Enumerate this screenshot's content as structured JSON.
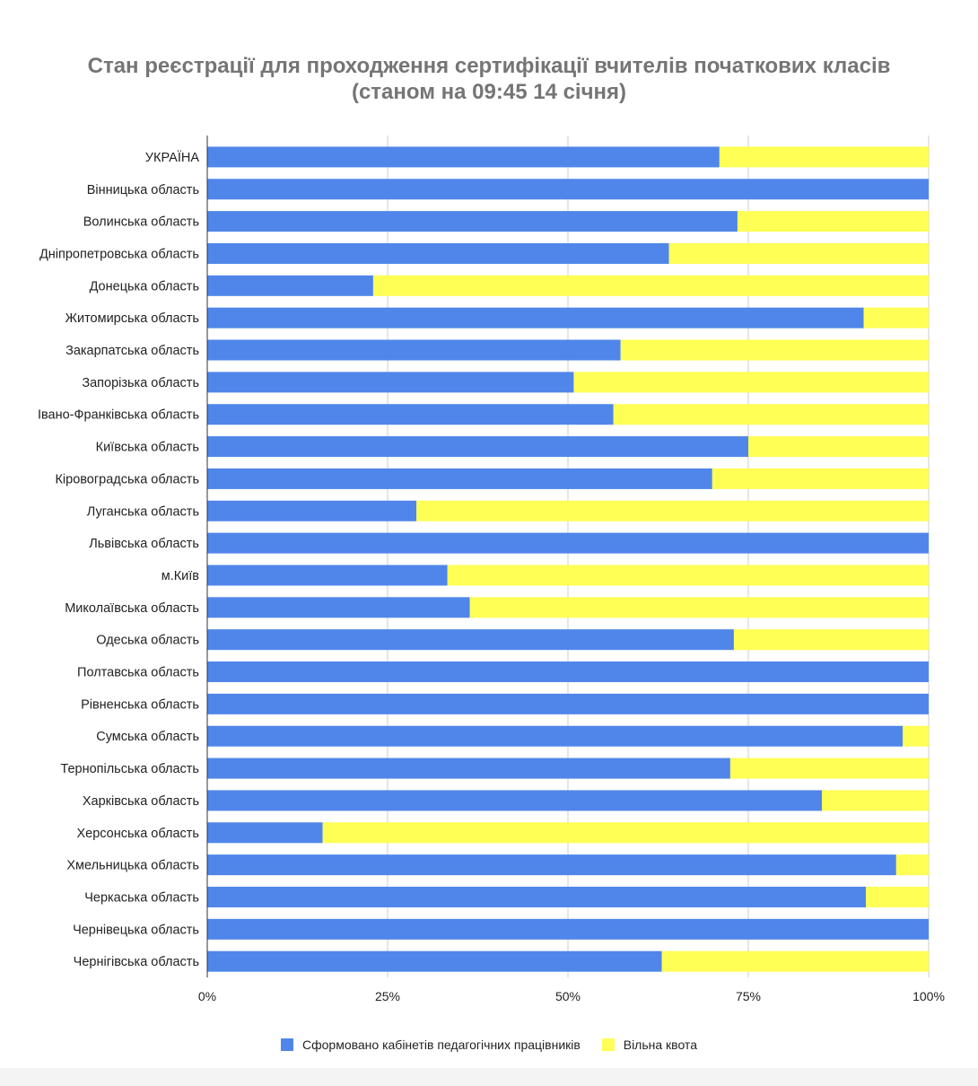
{
  "chart_data": {
    "type": "bar",
    "orientation": "horizontal",
    "stacked": "percent",
    "title": "Стан реєстрації для проходження сертифікації вчителів початкових класів",
    "subtitle": "(станом на 09:45 14 січня)",
    "categories": [
      "УКРАЇНА",
      "Вінницька область",
      "Волинська область",
      "Дніпропетровська область",
      "Донецька область",
      "Житомирська область",
      "Закарпатська область",
      "Запорізька область",
      "Івано-Франківська область",
      "Київська область",
      "Кіровоградська область",
      "Луганська область",
      "Львівська область",
      "м.Київ",
      "Миколаївська область",
      "Одеська область",
      "Полтавська область",
      "Рівненська область",
      "Сумська область",
      "Тернопільська область",
      "Харківська область",
      "Херсонська область",
      "Хмельницька область",
      "Черкаська область",
      "Чернівецька область",
      "Чернігівська область"
    ],
    "series": [
      {
        "name": "Сформовано кабінетів педагогічних працівників",
        "color": "#5086EA",
        "values": [
          71,
          100,
          73.5,
          64,
          23,
          91,
          57.3,
          50.8,
          56.3,
          75,
          70,
          29,
          100,
          33.3,
          36.4,
          73,
          100,
          100,
          96.4,
          72.5,
          85.2,
          16,
          95.5,
          91.3,
          100,
          63
        ]
      },
      {
        "name": "Вільна квота",
        "color": "#FFFF55",
        "values": [
          29,
          0,
          26.5,
          36,
          77,
          9,
          42.7,
          49.2,
          43.7,
          25,
          30,
          71,
          0,
          66.7,
          63.6,
          27,
          0,
          0,
          3.6,
          27.5,
          14.8,
          84,
          4.5,
          8.7,
          0,
          37
        ]
      }
    ],
    "xlim": [
      0,
      100
    ],
    "x_ticks": [
      "0%",
      "25%",
      "50%",
      "75%",
      "100%"
    ],
    "grid": true,
    "legend_position": "bottom"
  }
}
